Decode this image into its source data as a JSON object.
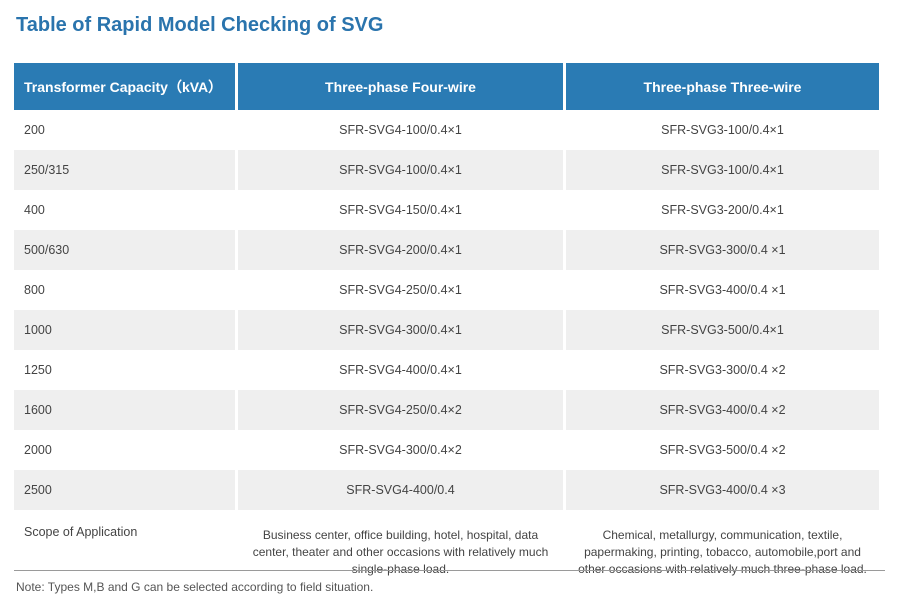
{
  "title": "Table of Rapid Model Checking of SVG",
  "table": {
    "headers": [
      "Transformer Capacity（kVA）",
      "Three-phase Four-wire",
      "Three-phase Three-wire"
    ],
    "rows": [
      [
        "200",
        "SFR-SVG4-100/0.4×1",
        "SFR-SVG3-100/0.4×1"
      ],
      [
        "250/315",
        "SFR-SVG4-100/0.4×1",
        "SFR-SVG3-100/0.4×1"
      ],
      [
        "400",
        "SFR-SVG4-150/0.4×1",
        "SFR-SVG3-200/0.4×1"
      ],
      [
        "500/630",
        "SFR-SVG4-200/0.4×1",
        "SFR-SVG3-300/0.4 ×1"
      ],
      [
        "800",
        "SFR-SVG4-250/0.4×1",
        "SFR-SVG3-400/0.4 ×1"
      ],
      [
        "1000",
        "SFR-SVG4-300/0.4×1",
        "SFR-SVG3-500/0.4×1"
      ],
      [
        "1250",
        "SFR-SVG4-400/0.4×1",
        "SFR-SVG3-300/0.4 ×2"
      ],
      [
        "1600",
        "SFR-SVG4-250/0.4×2",
        "SFR-SVG3-400/0.4 ×2"
      ],
      [
        "2000",
        "SFR-SVG4-300/0.4×2",
        "SFR-SVG3-500/0.4 ×2"
      ],
      [
        "2500",
        "SFR-SVG4-400/0.4",
        "SFR-SVG3-400/0.4 ×3"
      ]
    ],
    "scope": {
      "label": "Scope of Application",
      "four_wire": "Business center, office building, hotel, hospital, data center, theater and other occasions with relatively much single-phase load.",
      "three_wire": "Chemical, metallurgy, communication, textile, papermaking, printing, tobacco, automobile,port and other occasions with relatively much three-phase load."
    }
  },
  "note": "Note: Types M,B and G can be selected according to field situation."
}
